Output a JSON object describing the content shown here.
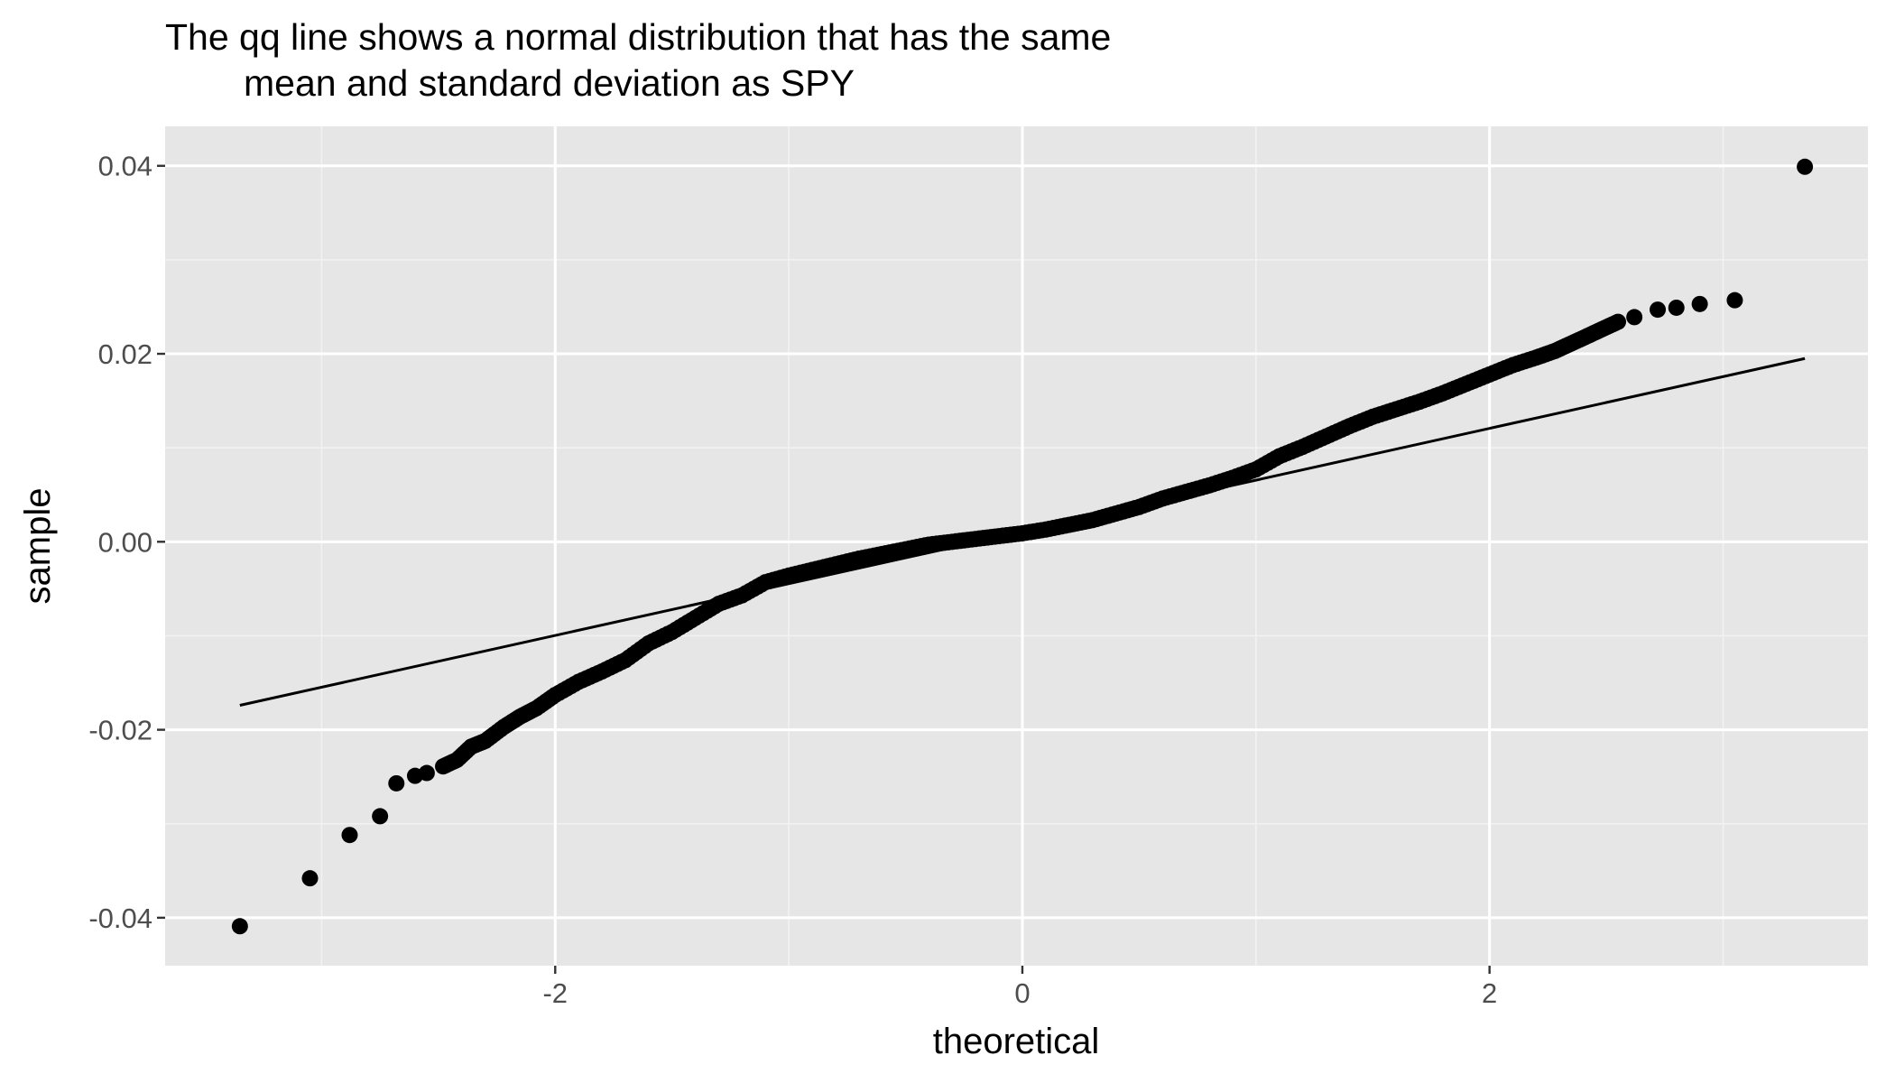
{
  "chart_data": {
    "type": "scatter",
    "title": [
      "The qq line shows a normal distribution that has the same",
      "mean and standard deviation as SPY"
    ],
    "xlabel": "theoretical",
    "ylabel": "sample",
    "xlim": [
      -3.67,
      3.62
    ],
    "ylim": [
      -0.0451,
      0.0442
    ],
    "x_ticks": [
      -2,
      0,
      2
    ],
    "x_tick_labels": [
      "-2",
      "0",
      "2"
    ],
    "y_ticks": [
      -0.04,
      -0.02,
      0.0,
      0.02,
      0.04
    ],
    "y_tick_labels": [
      "-0.04",
      "-0.02",
      "0.00",
      "0.02",
      "0.04"
    ],
    "grid": true,
    "legend": "none",
    "qq_line": {
      "x": [
        -3.35,
        3.35
      ],
      "y": [
        -0.0174,
        0.0195
      ]
    },
    "points": {
      "description_free": true,
      "x": [
        -3.35,
        -3.05,
        -2.88,
        -2.75,
        -2.68,
        -2.6,
        -2.55,
        -2.48,
        -2.42,
        -2.36,
        -2.3,
        -2.22,
        -2.15,
        -2.08,
        -2.0,
        -1.9,
        -1.8,
        -1.7,
        -1.6,
        -1.5,
        -1.4,
        -1.3,
        -1.2,
        -1.1,
        -1.0,
        -0.9,
        -0.8,
        -0.7,
        -0.6,
        -0.5,
        -0.4,
        -0.3,
        -0.2,
        -0.1,
        0.0,
        0.1,
        0.2,
        0.3,
        0.4,
        0.5,
        0.6,
        0.7,
        0.8,
        0.9,
        1.0,
        1.1,
        1.2,
        1.3,
        1.4,
        1.5,
        1.6,
        1.7,
        1.8,
        1.9,
        2.0,
        2.1,
        2.2,
        2.28,
        2.35,
        2.42,
        2.48,
        2.55,
        2.62,
        2.72,
        2.8,
        2.9,
        3.05,
        3.35
      ],
      "y": [
        -0.0409,
        -0.0358,
        -0.0312,
        -0.0292,
        -0.0257,
        -0.0249,
        -0.0246,
        -0.0239,
        -0.0232,
        -0.0218,
        -0.0212,
        -0.0197,
        -0.0186,
        -0.0177,
        -0.0163,
        -0.0149,
        -0.0138,
        -0.0126,
        -0.0108,
        -0.0096,
        -0.0081,
        -0.0066,
        -0.0057,
        -0.0043,
        -0.0036,
        -0.003,
        -0.0024,
        -0.0018,
        -0.0013,
        -0.0008,
        -0.0003,
        0.0,
        0.0003,
        0.0006,
        0.0009,
        0.0013,
        0.0018,
        0.0023,
        0.003,
        0.0037,
        0.0046,
        0.0053,
        0.006,
        0.0068,
        0.0077,
        0.0091,
        0.0101,
        0.0112,
        0.0123,
        0.0133,
        0.0141,
        0.0149,
        0.0158,
        0.0168,
        0.0178,
        0.0188,
        0.0196,
        0.0203,
        0.0211,
        0.0219,
        0.0226,
        0.0234,
        0.0239,
        0.0247,
        0.0249,
        0.0253,
        0.0257,
        0.0399
      ]
    }
  }
}
